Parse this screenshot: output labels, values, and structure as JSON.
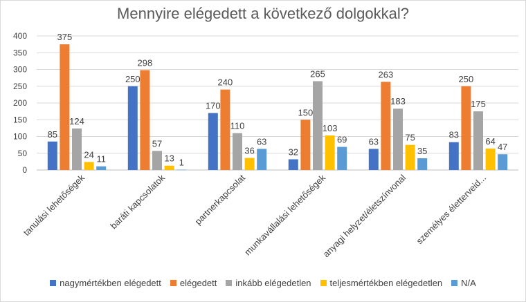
{
  "chart_data": {
    "type": "bar",
    "title": "Mennyire elégedett a következő dolgokkal?",
    "xlabel": "",
    "ylabel": "",
    "ylim": [
      0,
      400
    ],
    "yticks": [
      0,
      50,
      100,
      150,
      200,
      250,
      300,
      350,
      400
    ],
    "grid": true,
    "legend_position": "bottom",
    "categories": [
      "tanulási lehetőségek",
      "baráti kapcsolatok",
      "partnerkapcsolat",
      "munkavállalási lehetőségek",
      "anyagi helyzet/életszínvonal",
      "személyes életterveid..."
    ],
    "series": [
      {
        "name": "nagymértékben elégedett",
        "color": "#4472c4",
        "values": [
          85,
          250,
          170,
          32,
          63,
          83
        ]
      },
      {
        "name": "elégedett",
        "color": "#ed7d31",
        "values": [
          375,
          298,
          240,
          150,
          263,
          250
        ]
      },
      {
        "name": "inkább elégedetlen",
        "color": "#a5a5a5",
        "values": [
          124,
          57,
          110,
          265,
          183,
          175
        ]
      },
      {
        "name": "teljesmértékben elégedetlen",
        "color": "#ffc000",
        "values": [
          24,
          13,
          36,
          103,
          75,
          64
        ]
      },
      {
        "name": "N/A",
        "color": "#5b9bd5",
        "values": [
          11,
          1,
          63,
          69,
          35,
          47
        ]
      }
    ]
  }
}
